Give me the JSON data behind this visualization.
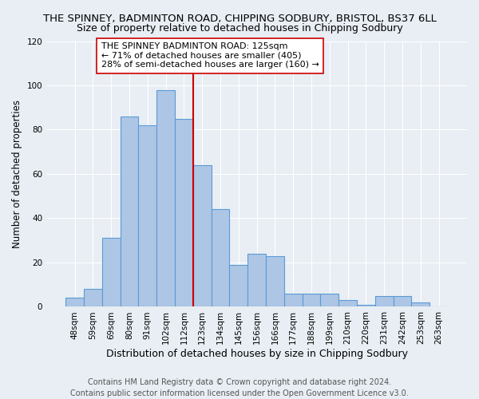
{
  "title": "THE SPINNEY, BADMINTON ROAD, CHIPPING SODBURY, BRISTOL, BS37 6LL",
  "subtitle": "Size of property relative to detached houses in Chipping Sodbury",
  "xlabel": "Distribution of detached houses by size in Chipping Sodbury",
  "ylabel": "Number of detached properties",
  "footnote": "Contains HM Land Registry data © Crown copyright and database right 2024.\nContains public sector information licensed under the Open Government Licence v3.0.",
  "bar_labels": [
    "48sqm",
    "59sqm",
    "69sqm",
    "80sqm",
    "91sqm",
    "102sqm",
    "112sqm",
    "123sqm",
    "134sqm",
    "145sqm",
    "156sqm",
    "166sqm",
    "177sqm",
    "188sqm",
    "199sqm",
    "210sqm",
    "220sqm",
    "231sqm",
    "242sqm",
    "253sqm",
    "263sqm"
  ],
  "bar_heights": [
    4,
    8,
    31,
    86,
    82,
    98,
    85,
    64,
    44,
    19,
    24,
    23,
    6,
    6,
    6,
    3,
    1,
    5,
    5,
    2,
    0
  ],
  "bar_color": "#adc6e5",
  "bar_edge_color": "#5b9bd5",
  "vline_color": "#cc0000",
  "annotation_text": "THE SPINNEY BADMINTON ROAD: 125sqm\n← 71% of detached houses are smaller (405)\n28% of semi-detached houses are larger (160) →",
  "annotation_box_color": "#ffffff",
  "annotation_box_edge": "#cc0000",
  "ylim": [
    0,
    120
  ],
  "yticks": [
    0,
    20,
    40,
    60,
    80,
    100,
    120
  ],
  "background_color": "#e8eef4",
  "plot_background": "#e8eef4",
  "grid_color": "#ffffff",
  "title_fontsize": 9.5,
  "subtitle_fontsize": 9,
  "xlabel_fontsize": 9,
  "ylabel_fontsize": 8.5,
  "tick_fontsize": 7.5,
  "annotation_fontsize": 8,
  "footnote_fontsize": 7
}
